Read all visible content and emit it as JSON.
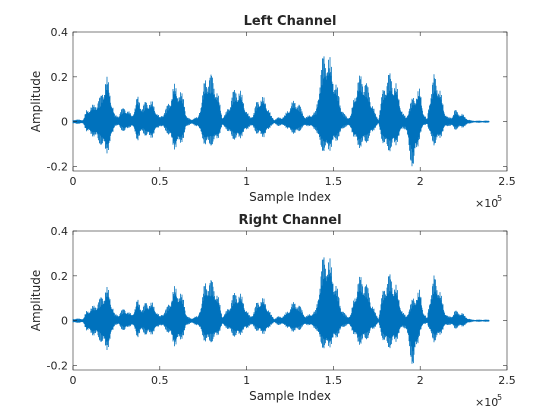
{
  "chart_data": [
    {
      "type": "line",
      "title": "Left Channel",
      "xlabel": "Sample Index",
      "ylabel": "Amplitude",
      "xlim": [
        0,
        250000
      ],
      "ylim": [
        -0.22,
        0.4
      ],
      "xticks": [
        0,
        50000,
        100000,
        150000,
        200000,
        250000
      ],
      "xtick_labels": [
        "0",
        "0.5",
        "1",
        "1.5",
        "2",
        "2.5"
      ],
      "x_exponent_base": "×10",
      "x_exponent_power": "5",
      "yticks": [
        -0.2,
        0,
        0.2,
        0.4
      ],
      "ytick_labels": [
        "-0.2",
        "0",
        "0.2",
        "0.4"
      ],
      "grid": false,
      "color": "#0072BD",
      "envelope": {
        "x": [
          0,
          6000,
          8000,
          10000,
          12000,
          14000,
          16000,
          17500,
          19000,
          20000,
          21000,
          22000,
          24000,
          26000,
          28000,
          30000,
          31000,
          32000,
          34000,
          36000,
          37000,
          38000,
          40000,
          42000,
          44000,
          46000,
          48000,
          50000,
          52000,
          54000,
          56000,
          58000,
          59000,
          60000,
          62000,
          64000,
          65000,
          66000,
          68000,
          70000,
          72000,
          74000,
          76000,
          78000,
          80000,
          82000,
          84000,
          86000,
          88000,
          90000,
          92000,
          94000,
          96000,
          98000,
          100000,
          102000,
          104000,
          106000,
          108000,
          110000,
          112000,
          114000,
          116000,
          118000,
          120000,
          122000,
          124000,
          126000,
          128000,
          130000,
          132000,
          134000,
          136000,
          138000,
          140000,
          141000,
          142000,
          144000,
          146000,
          148000,
          150000,
          152000,
          154000,
          156000,
          158000,
          160000,
          162000,
          164000,
          166000,
          168000,
          170000,
          172000,
          174000,
          176000,
          178000,
          180000,
          182000,
          184000,
          186000,
          188000,
          190000,
          192000,
          194000,
          196000,
          198000,
          200000,
          202000,
          204000,
          206000,
          208000,
          210000,
          212000,
          214000,
          216000,
          218000,
          220000,
          222000,
          224000,
          226000,
          228000,
          230000,
          232000,
          234000,
          236000,
          238000,
          240000
        ],
        "upper": [
          0.01,
          0.01,
          0.06,
          0.07,
          0.08,
          0.1,
          0.12,
          0.17,
          0.21,
          0.2,
          0.16,
          0.12,
          0.03,
          0.03,
          0.06,
          0.07,
          0.06,
          0.05,
          0.03,
          0.08,
          0.12,
          0.11,
          0.07,
          0.1,
          0.1,
          0.09,
          0.05,
          0.02,
          0.04,
          0.07,
          0.11,
          0.17,
          0.17,
          0.16,
          0.14,
          0.11,
          0.04,
          0.02,
          0.01,
          0.02,
          0.02,
          0.1,
          0.2,
          0.23,
          0.22,
          0.18,
          0.11,
          0.02,
          0.04,
          0.08,
          0.14,
          0.16,
          0.15,
          0.11,
          0.05,
          0.02,
          0.04,
          0.1,
          0.12,
          0.11,
          0.08,
          0.03,
          0.01,
          0.02,
          0.02,
          0.03,
          0.06,
          0.09,
          0.1,
          0.09,
          0.05,
          0.02,
          0.03,
          0.04,
          0.05,
          0.12,
          0.2,
          0.31,
          0.34,
          0.29,
          0.23,
          0.17,
          0.09,
          0.04,
          0.02,
          0.03,
          0.12,
          0.2,
          0.22,
          0.21,
          0.16,
          0.1,
          0.04,
          0.01,
          0.13,
          0.2,
          0.23,
          0.21,
          0.18,
          0.11,
          0.04,
          0.02,
          0.08,
          0.12,
          0.14,
          0.15,
          0.04,
          0.01,
          0.15,
          0.22,
          0.2,
          0.13,
          0.05,
          0.02,
          0.02,
          0.06,
          0.04,
          0.04,
          0.02,
          0.01,
          0.005,
          0.005,
          0.005,
          0.005,
          0.005,
          0.005
        ],
        "lower": [
          -0.01,
          -0.01,
          -0.05,
          -0.06,
          -0.07,
          -0.09,
          -0.11,
          -0.13,
          -0.15,
          -0.14,
          -0.12,
          -0.09,
          -0.02,
          -0.02,
          -0.04,
          -0.05,
          -0.04,
          -0.03,
          -0.02,
          -0.06,
          -0.09,
          -0.08,
          -0.05,
          -0.07,
          -0.08,
          -0.07,
          -0.04,
          -0.02,
          -0.03,
          -0.05,
          -0.08,
          -0.12,
          -0.13,
          -0.12,
          -0.1,
          -0.08,
          -0.03,
          -0.02,
          -0.01,
          -0.02,
          -0.02,
          -0.07,
          -0.11,
          -0.12,
          -0.11,
          -0.1,
          -0.07,
          -0.02,
          -0.03,
          -0.06,
          -0.08,
          -0.09,
          -0.08,
          -0.06,
          -0.04,
          -0.02,
          -0.03,
          -0.06,
          -0.07,
          -0.07,
          -0.05,
          -0.02,
          -0.01,
          -0.02,
          -0.02,
          -0.02,
          -0.04,
          -0.05,
          -0.06,
          -0.05,
          -0.03,
          -0.02,
          -0.02,
          -0.03,
          -0.04,
          -0.07,
          -0.11,
          -0.14,
          -0.15,
          -0.13,
          -0.11,
          -0.09,
          -0.06,
          -0.03,
          -0.02,
          -0.03,
          -0.08,
          -0.12,
          -0.12,
          -0.11,
          -0.09,
          -0.06,
          -0.03,
          -0.01,
          -0.09,
          -0.13,
          -0.14,
          -0.13,
          -0.11,
          -0.07,
          -0.03,
          -0.04,
          -0.18,
          -0.22,
          -0.15,
          -0.06,
          -0.02,
          -0.01,
          -0.08,
          -0.11,
          -0.1,
          -0.07,
          -0.03,
          -0.02,
          -0.02,
          -0.04,
          -0.03,
          -0.03,
          -0.02,
          -0.01,
          -0.005,
          -0.005,
          -0.005,
          -0.005,
          -0.005,
          -0.005
        ]
      }
    },
    {
      "type": "line",
      "title": "Right Channel",
      "xlabel": "Sample Index",
      "ylabel": "Amplitude",
      "xlim": [
        0,
        250000
      ],
      "ylim": [
        -0.22,
        0.4
      ],
      "xticks": [
        0,
        50000,
        100000,
        150000,
        200000,
        250000
      ],
      "xtick_labels": [
        "0",
        "0.5",
        "1",
        "1.5",
        "2",
        "2.5"
      ],
      "x_exponent_base": "×10",
      "x_exponent_power": "5",
      "yticks": [
        -0.2,
        0,
        0.2,
        0.4
      ],
      "ytick_labels": [
        "-0.2",
        "0",
        "0.2",
        "0.4"
      ],
      "grid": false,
      "color": "#0072BD",
      "envelope": {
        "x": [
          0,
          6000,
          8000,
          10000,
          12000,
          14000,
          16000,
          17500,
          19000,
          20000,
          21000,
          22000,
          24000,
          26000,
          28000,
          30000,
          31000,
          32000,
          34000,
          36000,
          37000,
          38000,
          40000,
          42000,
          44000,
          46000,
          48000,
          50000,
          52000,
          54000,
          56000,
          58000,
          59000,
          60000,
          62000,
          64000,
          65000,
          66000,
          68000,
          70000,
          72000,
          74000,
          76000,
          78000,
          80000,
          82000,
          84000,
          86000,
          88000,
          90000,
          92000,
          94000,
          96000,
          98000,
          100000,
          102000,
          104000,
          106000,
          108000,
          110000,
          112000,
          114000,
          116000,
          118000,
          120000,
          122000,
          124000,
          126000,
          128000,
          130000,
          132000,
          134000,
          136000,
          138000,
          140000,
          141000,
          142000,
          144000,
          146000,
          148000,
          150000,
          152000,
          154000,
          156000,
          158000,
          160000,
          162000,
          164000,
          166000,
          168000,
          170000,
          172000,
          174000,
          176000,
          178000,
          180000,
          182000,
          184000,
          186000,
          188000,
          190000,
          192000,
          194000,
          196000,
          198000,
          200000,
          202000,
          204000,
          206000,
          208000,
          210000,
          212000,
          214000,
          216000,
          218000,
          220000,
          222000,
          224000,
          226000,
          228000,
          230000,
          232000,
          234000,
          236000,
          238000,
          240000
        ],
        "upper": [
          0.01,
          0.01,
          0.05,
          0.06,
          0.07,
          0.09,
          0.11,
          0.13,
          0.16,
          0.15,
          0.13,
          0.1,
          0.03,
          0.03,
          0.05,
          0.06,
          0.05,
          0.04,
          0.03,
          0.07,
          0.1,
          0.09,
          0.06,
          0.09,
          0.09,
          0.08,
          0.05,
          0.02,
          0.04,
          0.06,
          0.1,
          0.15,
          0.16,
          0.15,
          0.13,
          0.1,
          0.04,
          0.02,
          0.01,
          0.02,
          0.02,
          0.09,
          0.18,
          0.2,
          0.19,
          0.16,
          0.1,
          0.02,
          0.04,
          0.07,
          0.12,
          0.14,
          0.13,
          0.1,
          0.05,
          0.02,
          0.04,
          0.09,
          0.11,
          0.1,
          0.07,
          0.03,
          0.01,
          0.02,
          0.02,
          0.03,
          0.05,
          0.08,
          0.09,
          0.08,
          0.05,
          0.02,
          0.03,
          0.04,
          0.05,
          0.11,
          0.19,
          0.3,
          0.32,
          0.28,
          0.22,
          0.16,
          0.08,
          0.04,
          0.02,
          0.03,
          0.11,
          0.19,
          0.21,
          0.2,
          0.15,
          0.09,
          0.04,
          0.01,
          0.12,
          0.19,
          0.22,
          0.2,
          0.17,
          0.1,
          0.04,
          0.02,
          0.07,
          0.11,
          0.13,
          0.14,
          0.04,
          0.01,
          0.14,
          0.21,
          0.19,
          0.12,
          0.05,
          0.02,
          0.02,
          0.05,
          0.04,
          0.04,
          0.02,
          0.01,
          0.005,
          0.005,
          0.005,
          0.005,
          0.005,
          0.005
        ],
        "lower": [
          -0.01,
          -0.01,
          -0.05,
          -0.06,
          -0.07,
          -0.08,
          -0.1,
          -0.12,
          -0.14,
          -0.13,
          -0.11,
          -0.08,
          -0.02,
          -0.02,
          -0.04,
          -0.05,
          -0.04,
          -0.03,
          -0.02,
          -0.05,
          -0.08,
          -0.07,
          -0.05,
          -0.07,
          -0.07,
          -0.06,
          -0.04,
          -0.02,
          -0.03,
          -0.05,
          -0.07,
          -0.11,
          -0.12,
          -0.11,
          -0.09,
          -0.07,
          -0.03,
          -0.02,
          -0.01,
          -0.02,
          -0.02,
          -0.06,
          -0.1,
          -0.11,
          -0.1,
          -0.09,
          -0.06,
          -0.02,
          -0.03,
          -0.05,
          -0.07,
          -0.08,
          -0.07,
          -0.05,
          -0.04,
          -0.02,
          -0.03,
          -0.05,
          -0.06,
          -0.06,
          -0.05,
          -0.02,
          -0.01,
          -0.02,
          -0.02,
          -0.02,
          -0.04,
          -0.05,
          -0.05,
          -0.05,
          -0.03,
          -0.02,
          -0.02,
          -0.03,
          -0.04,
          -0.06,
          -0.1,
          -0.13,
          -0.14,
          -0.12,
          -0.1,
          -0.08,
          -0.05,
          -0.03,
          -0.02,
          -0.03,
          -0.07,
          -0.11,
          -0.11,
          -0.1,
          -0.08,
          -0.05,
          -0.03,
          -0.01,
          -0.08,
          -0.12,
          -0.13,
          -0.12,
          -0.1,
          -0.06,
          -0.03,
          -0.04,
          -0.16,
          -0.22,
          -0.14,
          -0.05,
          -0.02,
          -0.01,
          -0.07,
          -0.1,
          -0.09,
          -0.06,
          -0.03,
          -0.02,
          -0.02,
          -0.04,
          -0.03,
          -0.03,
          -0.02,
          -0.01,
          -0.005,
          -0.005,
          -0.005,
          -0.005,
          -0.005,
          -0.005
        ]
      }
    }
  ]
}
